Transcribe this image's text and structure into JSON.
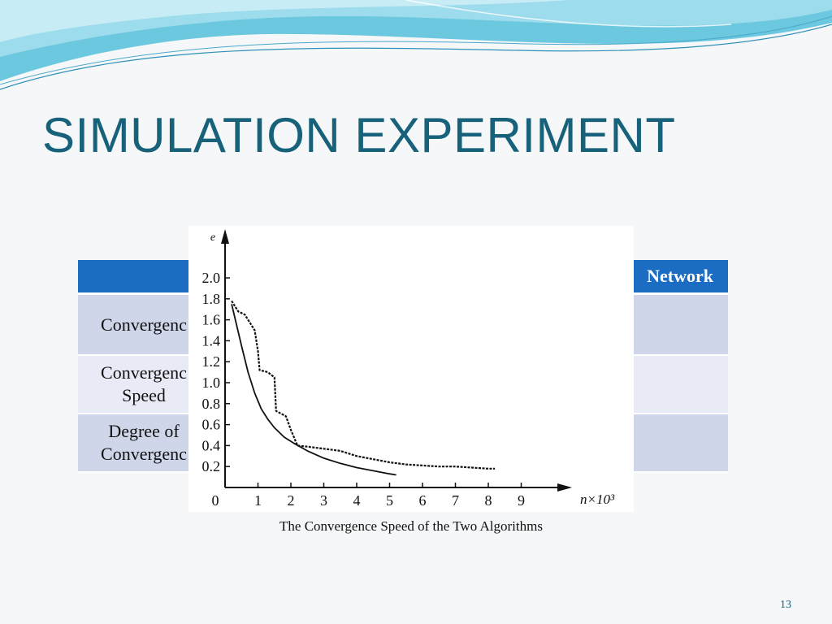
{
  "slide": {
    "title": "SIMULATION EXPERIMENT",
    "page_number": "13",
    "caption": "The Convergence Speed of the Two Algorithms"
  },
  "table": {
    "header_visible_text": "Network",
    "rows": [
      {
        "label": "Convergenc"
      },
      {
        "label_line1": "Convergenc",
        "label_line2": "Speed"
      },
      {
        "label_line1": "Degree  of",
        "label_line2": "Convergenc"
      }
    ]
  },
  "colors": {
    "title": "#17627a",
    "table_header": "#1a6dc2",
    "row_dark": "#cfd6ea",
    "row_light": "#e8ebf5"
  },
  "chart_data": {
    "type": "line",
    "ylabel": "e",
    "xlabel": "n×10³",
    "x_ticks": [
      "0",
      "1",
      "2",
      "3",
      "4",
      "5",
      "6",
      "7",
      "8",
      "9"
    ],
    "y_ticks": [
      "0.2",
      "0.4",
      "0.6",
      "0.8",
      "1.0",
      "1.2",
      "1.4",
      "1.6",
      "1.8",
      "2.0"
    ],
    "xlim": [
      0,
      10
    ],
    "ylim": [
      0,
      2.2
    ],
    "series": [
      {
        "style": "solid",
        "x": [
          0.2,
          0.35,
          0.5,
          0.7,
          0.9,
          1.1,
          1.3,
          1.5,
          1.8,
          2.1,
          2.5,
          3.0,
          3.5,
          4.0,
          4.5,
          5.0,
          5.2
        ],
        "y": [
          1.75,
          1.55,
          1.35,
          1.1,
          0.9,
          0.75,
          0.65,
          0.57,
          0.48,
          0.42,
          0.35,
          0.28,
          0.23,
          0.19,
          0.16,
          0.13,
          0.12
        ]
      },
      {
        "style": "dotted",
        "x": [
          0.2,
          0.4,
          0.6,
          0.9,
          1.0,
          1.05,
          1.3,
          1.5,
          1.55,
          1.85,
          2.0,
          2.2,
          2.5,
          3.0,
          3.5,
          4.0,
          4.5,
          5.0,
          5.5,
          6.0,
          6.5,
          7.0,
          7.5,
          8.0,
          8.2
        ],
        "y": [
          1.78,
          1.68,
          1.65,
          1.5,
          1.3,
          1.12,
          1.1,
          1.05,
          0.73,
          0.68,
          0.55,
          0.4,
          0.39,
          0.37,
          0.35,
          0.3,
          0.27,
          0.24,
          0.22,
          0.21,
          0.2,
          0.2,
          0.19,
          0.18,
          0.18
        ]
      }
    ]
  }
}
